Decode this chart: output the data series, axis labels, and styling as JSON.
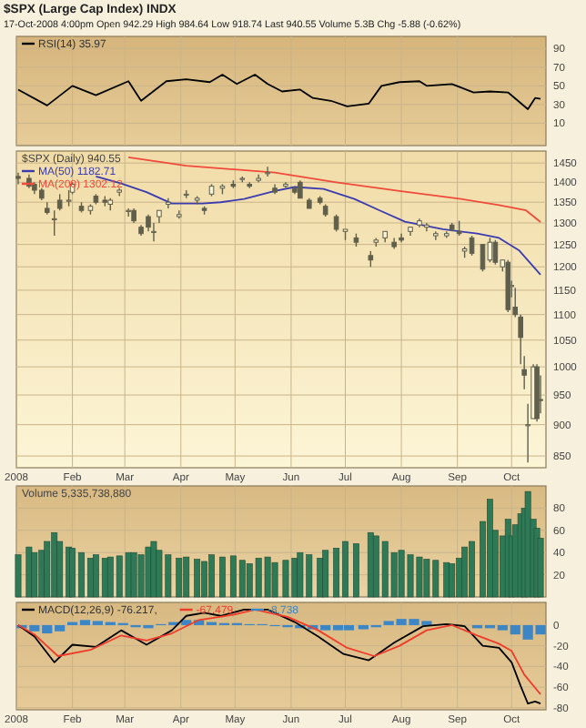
{
  "chart_data": [
    {
      "type": "line",
      "title": "$SPX (Large Cap Index) INDX",
      "subtitle": "17-Oct-2008 4:00pm   Open 942.29  High 984.64  Low 918.74  Last 940.55  Volume 5.3B  Chg -5.88 (-0.62%)",
      "x": [
        "2008-01-02",
        "2008-01-18",
        "2008-02-01",
        "2008-02-14",
        "2008-03-03",
        "2008-03-10",
        "2008-03-24",
        "2008-04-04",
        "2008-04-17",
        "2008-04-24",
        "2008-05-02",
        "2008-05-12",
        "2008-05-19",
        "2008-05-27",
        "2008-06-06",
        "2008-06-13",
        "2008-06-23",
        "2008-07-02",
        "2008-07-14",
        "2008-07-21",
        "2008-07-31",
        "2008-08-11",
        "2008-08-15",
        "2008-08-29",
        "2008-09-10",
        "2008-09-19",
        "2008-09-29",
        "2008-10-10",
        "2008-10-14",
        "2008-10-17"
      ],
      "series": [
        {
          "name": "RSI(14) 35.97",
          "color": "#000000",
          "values": [
            46,
            29,
            50,
            40,
            55,
            34,
            55,
            57,
            54,
            62,
            52,
            62,
            52,
            44,
            46,
            37,
            34,
            28,
            31,
            50,
            54,
            55,
            50,
            52,
            43,
            44,
            43,
            25,
            37,
            36
          ]
        }
      ],
      "xlim": [
        "2008-01-01",
        "2008-10-20"
      ],
      "xticks": [
        {
          "value": "2008-01-01",
          "label": null
        },
        {
          "value": "2008-02-01",
          "label": null
        },
        {
          "value": "2008-03-01",
          "label": null
        },
        {
          "value": "2008-04-01",
          "label": null
        },
        {
          "value": "2008-05-01",
          "label": null
        },
        {
          "value": "2008-06-01",
          "label": null
        },
        {
          "value": "2008-07-01",
          "label": null
        },
        {
          "value": "2008-08-01",
          "label": null
        },
        {
          "value": "2008-09-01",
          "label": null
        },
        {
          "value": "2008-10-01",
          "label": null
        }
      ],
      "ylim": [
        -14,
        103
      ],
      "yticks": [
        10,
        30,
        50,
        70,
        90
      ],
      "grid": true,
      "legend": "top left",
      "tick_labels": "y"
    },
    {
      "type": "candlestick",
      "title": "$SPX (Daily) 940.55",
      "color": "#5f5f4c",
      "x": [
        "2008-01-02",
        "2008-01-08",
        "2008-01-11",
        "2008-01-15",
        "2008-01-18",
        "2008-01-22",
        "2008-01-25",
        "2008-01-30",
        "2008-02-01",
        "2008-02-06",
        "2008-02-11",
        "2008-02-14",
        "2008-02-19",
        "2008-02-22",
        "2008-02-27",
        "2008-03-03",
        "2008-03-06",
        "2008-03-10",
        "2008-03-14",
        "2008-03-17",
        "2008-03-20",
        "2008-03-25",
        "2008-03-31",
        "2008-04-04",
        "2008-04-10",
        "2008-04-14",
        "2008-04-18",
        "2008-04-24",
        "2008-04-30",
        "2008-05-05",
        "2008-05-09",
        "2008-05-14",
        "2008-05-19",
        "2008-05-23",
        "2008-05-29",
        "2008-06-03",
        "2008-06-06",
        "2008-06-11",
        "2008-06-17",
        "2008-06-20",
        "2008-06-26",
        "2008-07-01",
        "2008-07-07",
        "2008-07-15",
        "2008-07-18",
        "2008-07-23",
        "2008-07-28",
        "2008-08-01",
        "2008-08-06",
        "2008-08-11",
        "2008-08-15",
        "2008-08-20",
        "2008-08-26",
        "2008-08-29",
        "2008-09-02",
        "2008-09-05",
        "2008-09-09",
        "2008-09-15",
        "2008-09-19",
        "2008-09-22",
        "2008-09-26",
        "2008-09-29",
        "2008-10-01",
        "2008-10-03",
        "2008-10-06",
        "2008-10-08",
        "2008-10-10",
        "2008-10-13",
        "2008-10-15",
        "2008-10-17"
      ],
      "ohlc": [
        [
          1415,
          1425,
          1395,
          1410
        ],
        [
          1410,
          1420,
          1385,
          1390
        ],
        [
          1395,
          1400,
          1370,
          1380
        ],
        [
          1380,
          1385,
          1355,
          1360
        ],
        [
          1335,
          1350,
          1320,
          1325
        ],
        [
          1310,
          1330,
          1270,
          1310
        ],
        [
          1355,
          1370,
          1330,
          1335
        ],
        [
          1355,
          1380,
          1340,
          1355
        ],
        [
          1375,
          1400,
          1370,
          1395
        ],
        [
          1340,
          1350,
          1325,
          1330
        ],
        [
          1330,
          1345,
          1320,
          1340
        ],
        [
          1365,
          1370,
          1345,
          1350
        ],
        [
          1355,
          1365,
          1340,
          1350
        ],
        [
          1345,
          1360,
          1330,
          1355
        ],
        [
          1375,
          1385,
          1365,
          1380
        ],
        [
          1330,
          1335,
          1315,
          1330
        ],
        [
          1330,
          1335,
          1300,
          1305
        ],
        [
          1290,
          1295,
          1270,
          1275
        ],
        [
          1315,
          1320,
          1280,
          1290
        ],
        [
          1280,
          1300,
          1257,
          1280
        ],
        [
          1315,
          1330,
          1300,
          1330
        ],
        [
          1345,
          1360,
          1335,
          1350
        ],
        [
          1315,
          1330,
          1310,
          1320
        ],
        [
          1370,
          1380,
          1360,
          1370
        ],
        [
          1355,
          1365,
          1345,
          1360
        ],
        [
          1335,
          1340,
          1320,
          1330
        ],
        [
          1370,
          1395,
          1365,
          1390
        ],
        [
          1385,
          1395,
          1370,
          1390
        ],
        [
          1395,
          1405,
          1385,
          1390
        ],
        [
          1410,
          1415,
          1400,
          1410
        ],
        [
          1395,
          1400,
          1385,
          1390
        ],
        [
          1405,
          1420,
          1400,
          1410
        ],
        [
          1425,
          1440,
          1415,
          1425
        ],
        [
          1385,
          1395,
          1370,
          1375
        ],
        [
          1390,
          1400,
          1385,
          1395
        ],
        [
          1385,
          1390,
          1370,
          1375
        ],
        [
          1400,
          1405,
          1360,
          1360
        ],
        [
          1355,
          1360,
          1335,
          1335
        ],
        [
          1360,
          1365,
          1345,
          1350
        ],
        [
          1340,
          1345,
          1315,
          1320
        ],
        [
          1315,
          1320,
          1280,
          1285
        ],
        [
          1280,
          1285,
          1260,
          1285
        ],
        [
          1265,
          1275,
          1245,
          1255
        ],
        [
          1225,
          1235,
          1200,
          1215
        ],
        [
          1255,
          1265,
          1245,
          1260
        ],
        [
          1265,
          1280,
          1255,
          1280
        ],
        [
          1255,
          1265,
          1240,
          1245
        ],
        [
          1265,
          1275,
          1255,
          1260
        ],
        [
          1280,
          1290,
          1270,
          1290
        ],
        [
          1295,
          1310,
          1290,
          1305
        ],
        [
          1290,
          1300,
          1280,
          1295
        ],
        [
          1270,
          1280,
          1260,
          1275
        ],
        [
          1270,
          1280,
          1265,
          1275
        ],
        [
          1295,
          1300,
          1280,
          1285
        ],
        [
          1280,
          1305,
          1270,
          1275
        ],
        [
          1235,
          1245,
          1220,
          1240
        ],
        [
          1265,
          1270,
          1225,
          1230
        ],
        [
          1250,
          1250,
          1190,
          1195
        ],
        [
          1215,
          1265,
          1210,
          1255
        ],
        [
          1255,
          1260,
          1205,
          1210
        ],
        [
          1200,
          1215,
          1190,
          1215
        ],
        [
          1210,
          1215,
          1105,
          1110
        ],
        [
          1160,
          1170,
          1135,
          1160
        ],
        [
          1115,
          1155,
          1095,
          1100
        ],
        [
          1095,
          1100,
          1005,
          1055
        ],
        [
          995,
          1020,
          960,
          985
        ],
        [
          900,
          935,
          840,
          900
        ],
        [
          910,
          1005,
          910,
          1000
        ],
        [
          1000,
          1005,
          905,
          910
        ],
        [
          942.29,
          984.64,
          918.74,
          940.55
        ]
      ],
      "series": [
        {
          "name": "MA(50) 1182.71",
          "type": "line",
          "color": "#3b3bb0",
          "x": [
            "2008-02-14",
            "2008-02-28",
            "2008-03-13",
            "2008-03-27",
            "2008-04-13",
            "2008-04-23",
            "2008-05-06",
            "2008-05-23",
            "2008-06-03",
            "2008-06-19",
            "2008-07-06",
            "2008-07-20",
            "2008-08-03",
            "2008-08-24",
            "2008-09-12",
            "2008-09-24",
            "2008-10-05",
            "2008-10-17"
          ],
          "values": [
            1415,
            1397,
            1375,
            1347,
            1347,
            1350,
            1358,
            1378,
            1388,
            1383,
            1358,
            1330,
            1303,
            1285,
            1275,
            1265,
            1237,
            1183
          ]
        },
        {
          "name": "MA(200) 1302.12",
          "type": "line",
          "color": "#f04a3a",
          "x": [
            "2008-03-03",
            "2008-04-04",
            "2008-05-23",
            "2008-06-26",
            "2008-07-31",
            "2008-09-03",
            "2008-09-24",
            "2008-10-09",
            "2008-10-17"
          ],
          "values": [
            1465,
            1443,
            1425,
            1400,
            1378,
            1358,
            1343,
            1330,
            1302
          ]
        }
      ],
      "xlim": [
        "2008-01-01",
        "2008-10-20"
      ],
      "xticks": [
        {
          "value": "2008-01-01",
          "label": "2008"
        },
        {
          "value": "2008-02-01",
          "label": "Feb"
        },
        {
          "value": "2008-03-01",
          "label": "Mar"
        },
        {
          "value": "2008-04-01",
          "label": "Apr"
        },
        {
          "value": "2008-05-01",
          "label": "May"
        },
        {
          "value": "2008-06-01",
          "label": "Jun"
        },
        {
          "value": "2008-07-01",
          "label": "Jul"
        },
        {
          "value": "2008-08-01",
          "label": "Aug"
        },
        {
          "value": "2008-09-01",
          "label": "Sep"
        },
        {
          "value": "2008-10-01",
          "label": "Oct"
        }
      ],
      "log": true,
      "ylim": [
        832,
        1482
      ],
      "yticks": [
        850,
        900,
        950,
        1000,
        1050,
        1100,
        1150,
        1200,
        1250,
        1300,
        1350,
        1400,
        1450
      ],
      "grid": true,
      "legend": "top left"
    },
    {
      "type": "bar",
      "title": "Volume 5,335,738,880",
      "color": "#2f7a56",
      "x": [
        "2008-01-02",
        "2008-01-08",
        "2008-01-11",
        "2008-01-15",
        "2008-01-18",
        "2008-01-22",
        "2008-01-25",
        "2008-01-30",
        "2008-02-01",
        "2008-02-06",
        "2008-02-11",
        "2008-02-14",
        "2008-02-19",
        "2008-02-22",
        "2008-02-27",
        "2008-03-03",
        "2008-03-06",
        "2008-03-10",
        "2008-03-14",
        "2008-03-17",
        "2008-03-20",
        "2008-03-25",
        "2008-03-31",
        "2008-04-04",
        "2008-04-10",
        "2008-04-14",
        "2008-04-18",
        "2008-04-24",
        "2008-04-30",
        "2008-05-05",
        "2008-05-09",
        "2008-05-14",
        "2008-05-19",
        "2008-05-23",
        "2008-05-29",
        "2008-06-03",
        "2008-06-06",
        "2008-06-11",
        "2008-06-17",
        "2008-06-20",
        "2008-06-26",
        "2008-07-01",
        "2008-07-07",
        "2008-07-15",
        "2008-07-18",
        "2008-07-23",
        "2008-07-28",
        "2008-08-01",
        "2008-08-06",
        "2008-08-11",
        "2008-08-15",
        "2008-08-20",
        "2008-08-26",
        "2008-08-29",
        "2008-09-02",
        "2008-09-05",
        "2008-09-09",
        "2008-09-15",
        "2008-09-19",
        "2008-09-22",
        "2008-09-26",
        "2008-09-29",
        "2008-10-01",
        "2008-10-03",
        "2008-10-06",
        "2008-10-08",
        "2008-10-10",
        "2008-10-13",
        "2008-10-15",
        "2008-10-17"
      ],
      "values": [
        38,
        45,
        40,
        42,
        50,
        58,
        50,
        45,
        44,
        40,
        35,
        38,
        35,
        36,
        37,
        40,
        40,
        38,
        45,
        50,
        42,
        38,
        35,
        36,
        34,
        32,
        38,
        36,
        37,
        33,
        30,
        35,
        36,
        31,
        33,
        35,
        40,
        38,
        35,
        42,
        44,
        50,
        48,
        58,
        55,
        50,
        40,
        42,
        38,
        36,
        34,
        33,
        31,
        30,
        35,
        45,
        50,
        68,
        88,
        60,
        55,
        70,
        55,
        65,
        75,
        80,
        95,
        70,
        62,
        53
      ],
      "xlim": [
        "2008-01-01",
        "2008-10-20"
      ],
      "xticks": [
        {
          "value": "2008-01-01",
          "label": null
        },
        {
          "value": "2008-02-01",
          "label": null
        },
        {
          "value": "2008-03-01",
          "label": null
        },
        {
          "value": "2008-04-01",
          "label": null
        },
        {
          "value": "2008-05-01",
          "label": null
        },
        {
          "value": "2008-06-01",
          "label": null
        },
        {
          "value": "2008-07-01",
          "label": null
        },
        {
          "value": "2008-08-01",
          "label": null
        },
        {
          "value": "2008-09-01",
          "label": null
        },
        {
          "value": "2008-10-01",
          "label": null
        }
      ],
      "ylim": [
        0,
        100
      ],
      "yticks": [
        20,
        40,
        60,
        80
      ],
      "grid": true,
      "tick_labels": "y"
    },
    {
      "type": "line",
      "series": [
        {
          "name": "MACD(12,26,9) -76.217,",
          "color": "#000000",
          "x": [
            "2008-01-02",
            "2008-01-11",
            "2008-01-22",
            "2008-02-01",
            "2008-02-14",
            "2008-02-28",
            "2008-03-13",
            "2008-03-27",
            "2008-04-04",
            "2008-04-14",
            "2008-04-23",
            "2008-05-06",
            "2008-05-19",
            "2008-06-03",
            "2008-06-16",
            "2008-06-30",
            "2008-07-14",
            "2008-07-28",
            "2008-08-13",
            "2008-08-26",
            "2008-09-05",
            "2008-09-15",
            "2008-09-24",
            "2008-10-01",
            "2008-10-06",
            "2008-10-10",
            "2008-10-14",
            "2008-10-17"
          ],
          "values": [
            0,
            -11,
            -36,
            -19,
            -21,
            -5,
            -19,
            -5,
            9,
            12,
            9,
            15,
            15,
            3,
            -11,
            -28,
            -34,
            -17,
            -1,
            1,
            -1,
            -20,
            -22,
            -36,
            -59,
            -76,
            -74,
            -76
          ]
        },
        {
          "name": "-67.479,",
          "color": "#f03a2a",
          "x": [
            "2008-01-02",
            "2008-01-11",
            "2008-01-24",
            "2008-02-11",
            "2008-02-28",
            "2008-03-13",
            "2008-03-27",
            "2008-04-11",
            "2008-04-30",
            "2008-05-12",
            "2008-05-30",
            "2008-06-16",
            "2008-07-02",
            "2008-07-17",
            "2008-07-31",
            "2008-08-15",
            "2008-08-29",
            "2008-09-12",
            "2008-09-24",
            "2008-10-01",
            "2008-10-08",
            "2008-10-17"
          ],
          "values": [
            0,
            -9,
            -30,
            -24,
            -10,
            -15,
            -8,
            5,
            10,
            15,
            8,
            -5,
            -22,
            -30,
            -20,
            -5,
            0,
            -10,
            -18,
            -25,
            -48,
            -67
          ]
        },
        {
          "name": "-8.738",
          "type": "bar",
          "color": "#3d86c6",
          "x": [
            "2008-01-04",
            "2008-01-11",
            "2008-01-18",
            "2008-01-25",
            "2008-02-01",
            "2008-02-08",
            "2008-02-15",
            "2008-02-22",
            "2008-02-29",
            "2008-03-07",
            "2008-03-14",
            "2008-03-21",
            "2008-03-28",
            "2008-04-04",
            "2008-04-11",
            "2008-04-18",
            "2008-04-25",
            "2008-05-02",
            "2008-05-09",
            "2008-05-16",
            "2008-05-23",
            "2008-05-30",
            "2008-06-06",
            "2008-06-13",
            "2008-06-20",
            "2008-06-27",
            "2008-07-03",
            "2008-07-11",
            "2008-07-18",
            "2008-07-25",
            "2008-08-01",
            "2008-08-08",
            "2008-08-15",
            "2008-09-12",
            "2008-09-19",
            "2008-09-26",
            "2008-10-03",
            "2008-10-10",
            "2008-10-17"
          ],
          "values": [
            -3,
            -6,
            -8,
            -6,
            3,
            5,
            4,
            3,
            2,
            -2,
            -3,
            1,
            3,
            5,
            5,
            3,
            2,
            2,
            1,
            1,
            -1,
            -2,
            -3,
            -4,
            -5,
            -5,
            -5,
            -4,
            -2,
            4,
            6,
            6,
            4,
            -3,
            -3,
            -5,
            -9,
            -14,
            -9
          ]
        }
      ],
      "xlim": [
        "2008-01-01",
        "2008-10-20"
      ],
      "xticks": [
        {
          "value": "2008-01-01",
          "label": "2008"
        },
        {
          "value": "2008-02-01",
          "label": "Feb"
        },
        {
          "value": "2008-03-01",
          "label": "Mar"
        },
        {
          "value": "2008-04-01",
          "label": "Apr"
        },
        {
          "value": "2008-05-01",
          "label": "May"
        },
        {
          "value": "2008-06-01",
          "label": "Jun"
        },
        {
          "value": "2008-07-01",
          "label": "Jul"
        },
        {
          "value": "2008-08-01",
          "label": "Aug"
        },
        {
          "value": "2008-09-01",
          "label": "Sep"
        },
        {
          "value": "2008-10-01",
          "label": "Oct"
        }
      ],
      "ylim": [
        -82,
        22
      ],
      "yticks": [
        -80,
        -60,
        -40,
        -20,
        0
      ],
      "grid": true,
      "legend": "top"
    }
  ]
}
